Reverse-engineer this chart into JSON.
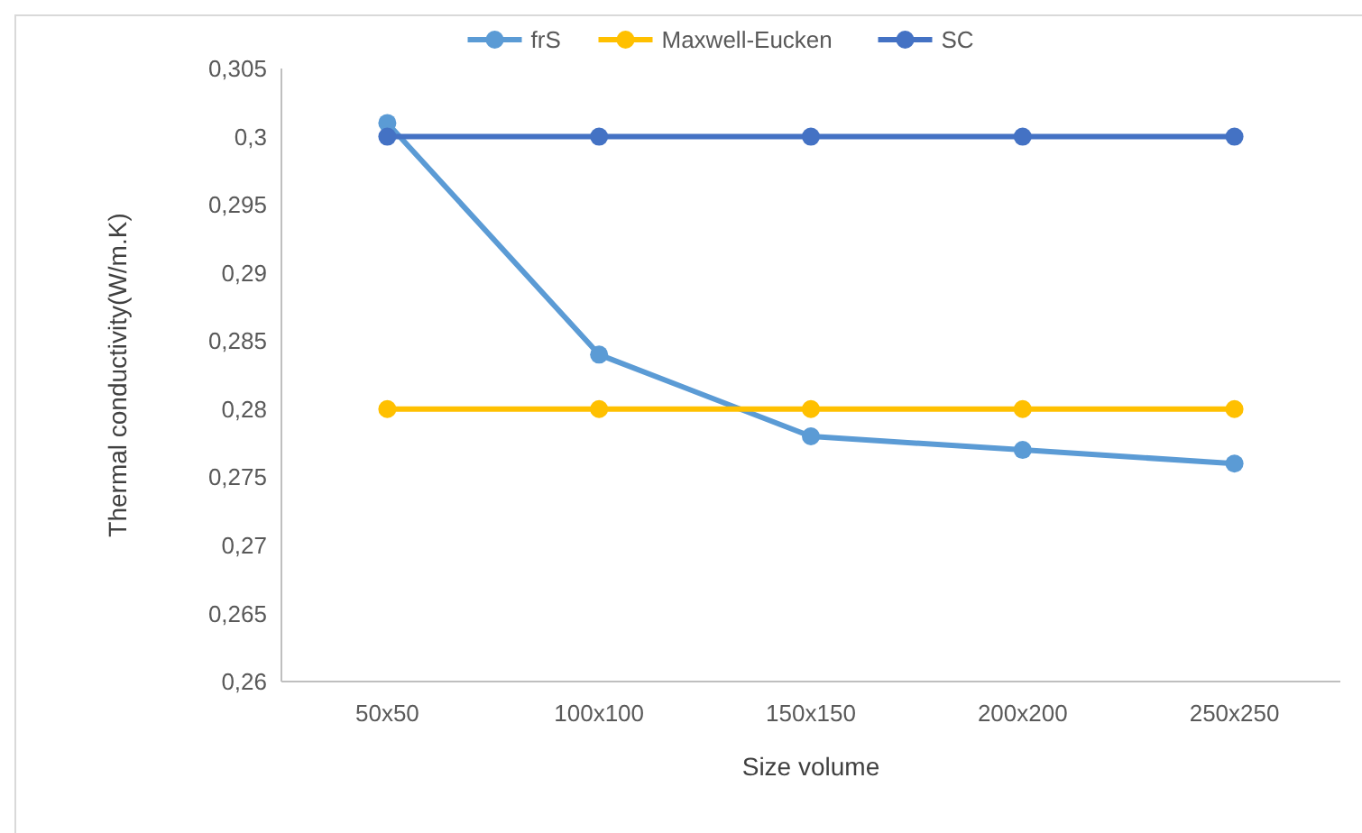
{
  "chart_data": {
    "type": "line",
    "xlabel": "Size volume",
    "ylabel": "Thermal conductivity(W/m.K)",
    "categories": [
      "50x50",
      "100x100",
      "150x150",
      "200x200",
      "250x250"
    ],
    "series": [
      {
        "name": "frS",
        "color": "#5b9bd5",
        "values": [
          0.301,
          0.284,
          0.278,
          0.277,
          0.276
        ]
      },
      {
        "name": "Maxwell-Eucken",
        "color": "#ffc000",
        "values": [
          0.28,
          0.28,
          0.28,
          0.28,
          0.28
        ]
      },
      {
        "name": "SC",
        "color": "#4472c4",
        "values": [
          0.3,
          0.3,
          0.3,
          0.3,
          0.3
        ]
      }
    ],
    "ylim": [
      0.26,
      0.305
    ],
    "yticks": [
      {
        "value": 0.26,
        "label": "0,26"
      },
      {
        "value": 0.265,
        "label": "0,265"
      },
      {
        "value": 0.27,
        "label": "0,27"
      },
      {
        "value": 0.275,
        "label": "0,275"
      },
      {
        "value": 0.28,
        "label": "0,28"
      },
      {
        "value": 0.285,
        "label": "0,285"
      },
      {
        "value": 0.29,
        "label": "0,29"
      },
      {
        "value": 0.295,
        "label": "0,295"
      },
      {
        "value": 0.3,
        "label": "0,3"
      },
      {
        "value": 0.305,
        "label": "0,305"
      }
    ],
    "grid": false,
    "legend": "top",
    "marker": "circle",
    "line_style": "solid"
  }
}
